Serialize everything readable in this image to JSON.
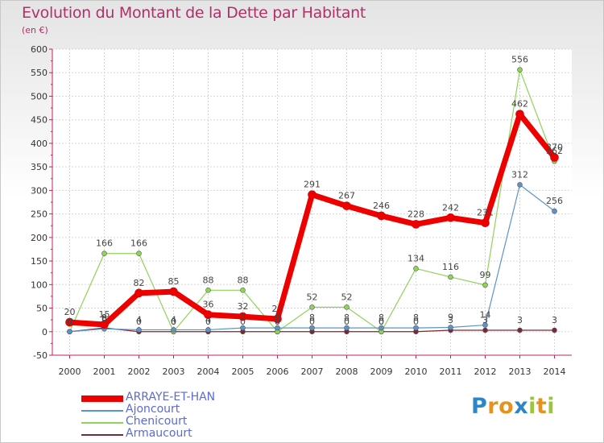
{
  "chart_data": {
    "type": "line",
    "title": "Evolution du Montant de la Dette par Habitant",
    "subtitle": "(en €)",
    "x": [
      "2000",
      "2001",
      "2002",
      "2003",
      "2004",
      "2005",
      "2006",
      "2007",
      "2008",
      "2009",
      "2010",
      "2011",
      "2012",
      "2013",
      "2014"
    ],
    "ylim": [
      -50,
      600
    ],
    "yticks": [
      -50,
      0,
      50,
      100,
      150,
      200,
      250,
      300,
      350,
      400,
      450,
      500,
      550,
      600
    ],
    "grid": true,
    "legend_position": "bottom-left",
    "series": [
      {
        "name": "ARRAYE-ET-HAN",
        "color": "#ee0000",
        "width": 7,
        "marker": 5,
        "values": [
          20,
          15,
          82,
          85,
          36,
          32,
          27,
          291,
          267,
          246,
          228,
          242,
          231,
          462,
          370
        ],
        "labels": [
          "20",
          "15",
          "82",
          "85",
          "36",
          "32",
          "27",
          "291",
          "267",
          "246",
          "228",
          "242",
          "231",
          "462",
          "370"
        ]
      },
      {
        "name": "Ajoncourt",
        "color": "#5a94c8",
        "width": 1.2,
        "marker": 3,
        "values": [
          0,
          6,
          4,
          4,
          4,
          8,
          8,
          8,
          8,
          8,
          8,
          9,
          14,
          312,
          256
        ],
        "labels": [
          "0",
          "6",
          "4",
          "4",
          "4",
          "8",
          "8",
          "8",
          "8",
          "8",
          "8",
          "9",
          "14",
          "312",
          "256"
        ]
      },
      {
        "name": "Chenicourt",
        "color": "#8fd35a",
        "width": 1.2,
        "marker": 3,
        "values": [
          0,
          166,
          166,
          0,
          88,
          88,
          0,
          52,
          52,
          0,
          134,
          116,
          99,
          556,
          362
        ],
        "labels": [
          "0",
          "166",
          "166",
          "0",
          "88",
          "88",
          "0",
          "52",
          "52",
          "0",
          "134",
          "116",
          "99",
          "556",
          "362"
        ]
      },
      {
        "name": "Armaucourt",
        "color": "#7a2a36",
        "width": 1.2,
        "marker": 3,
        "values": [
          0,
          8,
          0,
          0,
          0,
          0,
          0,
          0,
          0,
          0,
          0,
          3,
          3,
          3,
          3
        ],
        "labels": [
          "0",
          "8",
          "0",
          "0",
          "0",
          "0",
          "0",
          "0",
          "0",
          "0",
          "0",
          "3",
          "3",
          "3",
          "3"
        ]
      }
    ]
  },
  "logo": {
    "letters": [
      "P",
      "r",
      "o",
      "x",
      "i",
      "t",
      "i"
    ],
    "colors": [
      "#2d86c8",
      "#e8921e",
      "#e8921e",
      "#2d86c8",
      "#9bc53d",
      "#e8921e",
      "#9bc53d"
    ]
  }
}
